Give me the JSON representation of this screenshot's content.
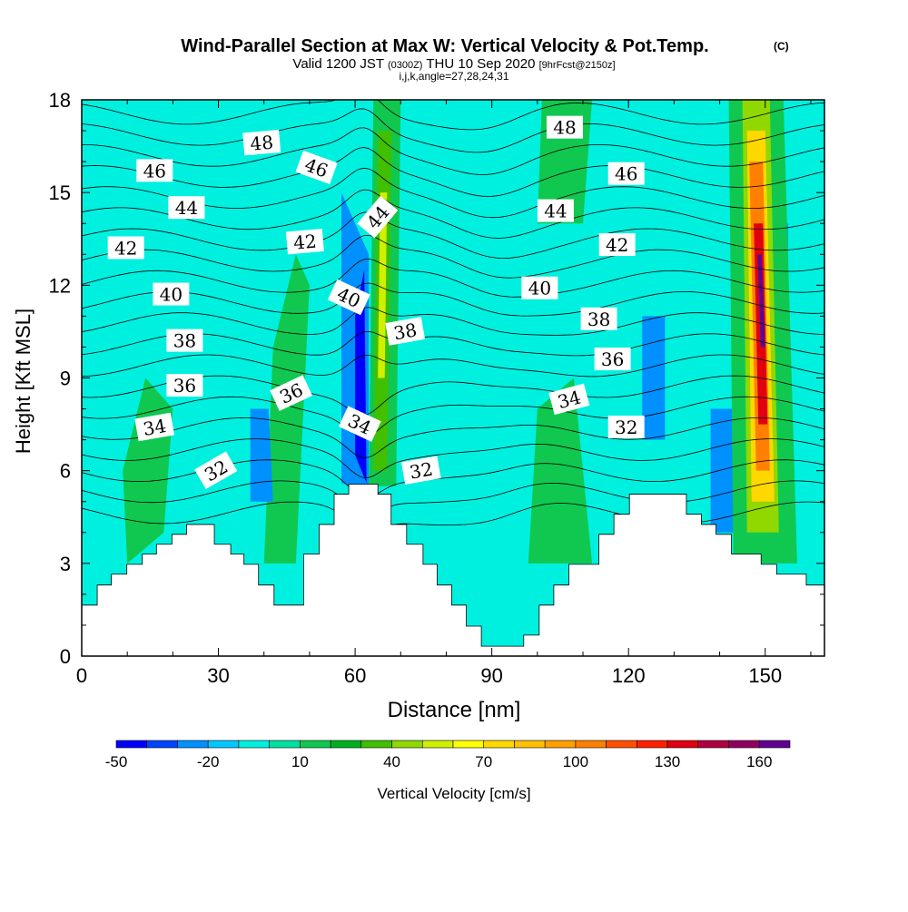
{
  "chart_data": {
    "type": "heatmap",
    "title": "Wind-Parallel Section at Max W: Vertical Velocity & Pot.Temp.",
    "title_mark": "(C)",
    "subtitle_main": "Valid 1200 JST",
    "subtitle_utc": "(0300Z)",
    "subtitle_date": "THU 10 Sep 2020",
    "subtitle_fcst": "[9hrFcst@2150z]",
    "subtitle2": "i,j,k,angle=27,28,24,31",
    "xlabel": "Distance [nm]",
    "ylabel": "Height [Kft MSL]",
    "xlim": [
      0,
      163
    ],
    "ylim": [
      0,
      18
    ],
    "xticks": [
      0,
      30,
      60,
      90,
      120,
      150
    ],
    "yticks": [
      0,
      3,
      6,
      9,
      12,
      15,
      18
    ],
    "colorbar": {
      "label": "Vertical Velocity [cm/s]",
      "levels": [
        -50,
        -40,
        -30,
        -20,
        -10,
        0,
        10,
        20,
        30,
        40,
        50,
        60,
        70,
        80,
        90,
        100,
        110,
        120,
        130,
        140,
        150,
        160,
        170
      ],
      "tick_labels": [
        "-50",
        "-20",
        "10",
        "40",
        "70",
        "100",
        "130",
        "160"
      ],
      "tick_values": [
        -50,
        -20,
        10,
        40,
        70,
        100,
        130,
        160
      ],
      "colors": [
        "#0000ff",
        "#0044ff",
        "#0090ff",
        "#00c8ff",
        "#00f0e0",
        "#00e0a0",
        "#10c850",
        "#00b020",
        "#40c000",
        "#90d800",
        "#d0f000",
        "#ffff00",
        "#ffd800",
        "#ffc000",
        "#ffa000",
        "#ff8000",
        "#ff5000",
        "#ff2000",
        "#e00010",
        "#b00040",
        "#900060",
        "#600090"
      ]
    },
    "w_features": [
      {
        "w": 15,
        "poly": [
          [
            40,
            3
          ],
          [
            47,
            3
          ],
          [
            50,
            12
          ],
          [
            47,
            13
          ],
          [
            42,
            10
          ]
        ]
      },
      {
        "w": 15,
        "poly": [
          [
            10,
            3
          ],
          [
            18,
            4
          ],
          [
            20,
            8
          ],
          [
            14,
            9
          ],
          [
            9,
            6
          ]
        ]
      },
      {
        "w": 15,
        "poly": [
          [
            100,
            14
          ],
          [
            110,
            14
          ],
          [
            112,
            18
          ],
          [
            101,
            18
          ]
        ]
      },
      {
        "w": 15,
        "poly": [
          [
            98,
            3
          ],
          [
            112,
            3
          ],
          [
            108,
            9
          ],
          [
            100,
            8
          ]
        ]
      },
      {
        "w": 15,
        "poly": [
          [
            63,
            5.5
          ],
          [
            69,
            5.5
          ],
          [
            70,
            18
          ],
          [
            64,
            18
          ]
        ]
      },
      {
        "w": 35,
        "poly": [
          [
            64,
            6
          ],
          [
            67,
            6
          ],
          [
            68,
            17
          ],
          [
            65,
            17
          ]
        ]
      },
      {
        "w": 55,
        "poly": [
          [
            65,
            9
          ],
          [
            66.5,
            9
          ],
          [
            67,
            15
          ],
          [
            65.5,
            15
          ]
        ]
      },
      {
        "w": -25,
        "poly": [
          [
            57,
            5.6
          ],
          [
            63,
            5.3
          ],
          [
            63,
            13
          ],
          [
            57,
            15
          ]
        ]
      },
      {
        "w": -45,
        "poly": [
          [
            60,
            6.5
          ],
          [
            62.5,
            5.6
          ],
          [
            62,
            12.5
          ],
          [
            60,
            11
          ]
        ]
      },
      {
        "w": -25,
        "poly": [
          [
            123,
            7
          ],
          [
            128,
            7
          ],
          [
            128,
            11
          ],
          [
            123,
            11
          ]
        ]
      },
      {
        "w": -25,
        "poly": [
          [
            138,
            4
          ],
          [
            143,
            4
          ],
          [
            143,
            8
          ],
          [
            138,
            8
          ]
        ]
      },
      {
        "w": -25,
        "poly": [
          [
            37,
            5
          ],
          [
            42,
            5
          ],
          [
            41,
            8
          ],
          [
            37,
            8
          ]
        ]
      },
      {
        "w": -25,
        "poly": [
          [
            152,
            9
          ],
          [
            155,
            9
          ],
          [
            155,
            14
          ],
          [
            152,
            14
          ]
        ]
      },
      {
        "w": 15,
        "poly": [
          [
            143,
            3
          ],
          [
            157,
            3
          ],
          [
            154,
            18
          ],
          [
            142,
            18
          ]
        ]
      },
      {
        "w": 45,
        "poly": [
          [
            146,
            4
          ],
          [
            153,
            4
          ],
          [
            151,
            18
          ],
          [
            145,
            18
          ]
        ]
      },
      {
        "w": 75,
        "poly": [
          [
            147,
            5
          ],
          [
            152,
            5
          ],
          [
            150,
            17
          ],
          [
            146,
            17
          ]
        ]
      },
      {
        "w": 105,
        "poly": [
          [
            148,
            6
          ],
          [
            151,
            6
          ],
          [
            149.5,
            16
          ],
          [
            146.5,
            16
          ]
        ]
      },
      {
        "w": 135,
        "poly": [
          [
            148.5,
            7.5
          ],
          [
            150.5,
            7.5
          ],
          [
            149.5,
            14
          ],
          [
            147.5,
            14
          ]
        ]
      },
      {
        "w": 165,
        "poly": [
          [
            149,
            10
          ],
          [
            150,
            10
          ],
          [
            149.2,
            13
          ],
          [
            148.3,
            13
          ]
        ]
      }
    ],
    "terrain": [
      [
        0,
        1.65
      ],
      [
        3.4,
        1.65
      ],
      [
        3.4,
        2.3
      ],
      [
        6.5,
        2.3
      ],
      [
        6.5,
        2.65
      ],
      [
        9.9,
        2.65
      ],
      [
        9.9,
        2.97
      ],
      [
        13.3,
        2.97
      ],
      [
        13.3,
        3.3
      ],
      [
        16.4,
        3.3
      ],
      [
        16.4,
        3.62
      ],
      [
        19.8,
        3.62
      ],
      [
        19.8,
        3.94
      ],
      [
        23,
        3.94
      ],
      [
        23,
        4.26
      ],
      [
        29.1,
        4.26
      ],
      [
        29.1,
        3.62
      ],
      [
        32.7,
        3.62
      ],
      [
        32.7,
        3.3
      ],
      [
        35.6,
        3.3
      ],
      [
        35.6,
        2.97
      ],
      [
        38.8,
        2.97
      ],
      [
        38.8,
        2.3
      ],
      [
        42.2,
        2.3
      ],
      [
        42.2,
        1.65
      ],
      [
        48.7,
        1.65
      ],
      [
        48.7,
        3.3
      ],
      [
        52.1,
        3.3
      ],
      [
        52.1,
        4.26
      ],
      [
        55.4,
        4.26
      ],
      [
        55.4,
        5.24
      ],
      [
        58.6,
        5.24
      ],
      [
        58.6,
        5.56
      ],
      [
        65,
        5.56
      ],
      [
        65,
        5.24
      ],
      [
        67.9,
        5.24
      ],
      [
        67.9,
        4.26
      ],
      [
        71.3,
        4.26
      ],
      [
        71.3,
        3.62
      ],
      [
        74.9,
        3.62
      ],
      [
        74.9,
        2.97
      ],
      [
        78,
        2.97
      ],
      [
        78,
        2.3
      ],
      [
        81.2,
        2.3
      ],
      [
        81.2,
        1.65
      ],
      [
        84.4,
        1.65
      ],
      [
        84.4,
        0.97
      ],
      [
        87.7,
        0.97
      ],
      [
        87.7,
        0.32
      ],
      [
        97,
        0.32
      ],
      [
        97,
        0.68
      ],
      [
        100.4,
        0.68
      ],
      [
        100.4,
        1.65
      ],
      [
        103.6,
        1.65
      ],
      [
        103.6,
        2.3
      ],
      [
        106.9,
        2.3
      ],
      [
        106.9,
        2.97
      ],
      [
        113.5,
        2.97
      ],
      [
        113.5,
        3.94
      ],
      [
        116.8,
        3.94
      ],
      [
        116.8,
        4.59
      ],
      [
        120.2,
        4.59
      ],
      [
        120.2,
        5.24
      ],
      [
        132.7,
        5.24
      ],
      [
        132.7,
        4.59
      ],
      [
        136,
        4.59
      ],
      [
        136,
        4.26
      ],
      [
        139.2,
        4.26
      ],
      [
        139.2,
        3.94
      ],
      [
        142.6,
        3.94
      ],
      [
        142.6,
        3.3
      ],
      [
        149.1,
        3.3
      ],
      [
        149.1,
        2.97
      ],
      [
        152.5,
        2.97
      ],
      [
        152.5,
        2.65
      ],
      [
        159,
        2.65
      ],
      [
        159,
        2.3
      ],
      [
        163,
        2.3
      ]
    ],
    "theta_levels": [
      30,
      31,
      32,
      33,
      34,
      35,
      36,
      37,
      38,
      39,
      40,
      41,
      42,
      43,
      44,
      45,
      46,
      47,
      48,
      49
    ],
    "theta_labels": [
      {
        "text": "48",
        "x": 39.5,
        "y": 16.6,
        "rot": -5
      },
      {
        "text": "46",
        "x": 16,
        "y": 15.7,
        "rot": 0
      },
      {
        "text": "44",
        "x": 23,
        "y": 14.5,
        "rot": 0
      },
      {
        "text": "42",
        "x": 9.7,
        "y": 13.2,
        "rot": 0
      },
      {
        "text": "40",
        "x": 19.6,
        "y": 11.7,
        "rot": 0
      },
      {
        "text": "38",
        "x": 22.6,
        "y": 10.2,
        "rot": 0
      },
      {
        "text": "36",
        "x": 22.6,
        "y": 8.75,
        "rot": 0
      },
      {
        "text": "34",
        "x": 16,
        "y": 7.4,
        "rot": -10
      },
      {
        "text": "32",
        "x": 29.5,
        "y": 6.0,
        "rot": -30
      },
      {
        "text": "46",
        "x": 51.5,
        "y": 15.8,
        "rot": 20
      },
      {
        "text": "42",
        "x": 49,
        "y": 13.4,
        "rot": -5
      },
      {
        "text": "44",
        "x": 65,
        "y": 14.2,
        "rot": -50
      },
      {
        "text": "40",
        "x": 58.6,
        "y": 11.6,
        "rot": 25
      },
      {
        "text": "38",
        "x": 71,
        "y": 10.5,
        "rot": -10
      },
      {
        "text": "36",
        "x": 46,
        "y": 8.5,
        "rot": -25
      },
      {
        "text": "34",
        "x": 61,
        "y": 7.5,
        "rot": 25
      },
      {
        "text": "32",
        "x": 74.5,
        "y": 6.0,
        "rot": -10
      },
      {
        "text": "48",
        "x": 106,
        "y": 17.1,
        "rot": 0
      },
      {
        "text": "46",
        "x": 119.5,
        "y": 15.6,
        "rot": 0
      },
      {
        "text": "44",
        "x": 104,
        "y": 14.4,
        "rot": 0
      },
      {
        "text": "42",
        "x": 117.5,
        "y": 13.3,
        "rot": 0
      },
      {
        "text": "40",
        "x": 100.5,
        "y": 11.9,
        "rot": 0
      },
      {
        "text": "38",
        "x": 113.5,
        "y": 10.9,
        "rot": 0
      },
      {
        "text": "36",
        "x": 116.5,
        "y": 9.6,
        "rot": 0
      },
      {
        "text": "34",
        "x": 107,
        "y": 8.3,
        "rot": -15
      },
      {
        "text": "32",
        "x": 119.5,
        "y": 7.4,
        "rot": 0
      }
    ]
  }
}
